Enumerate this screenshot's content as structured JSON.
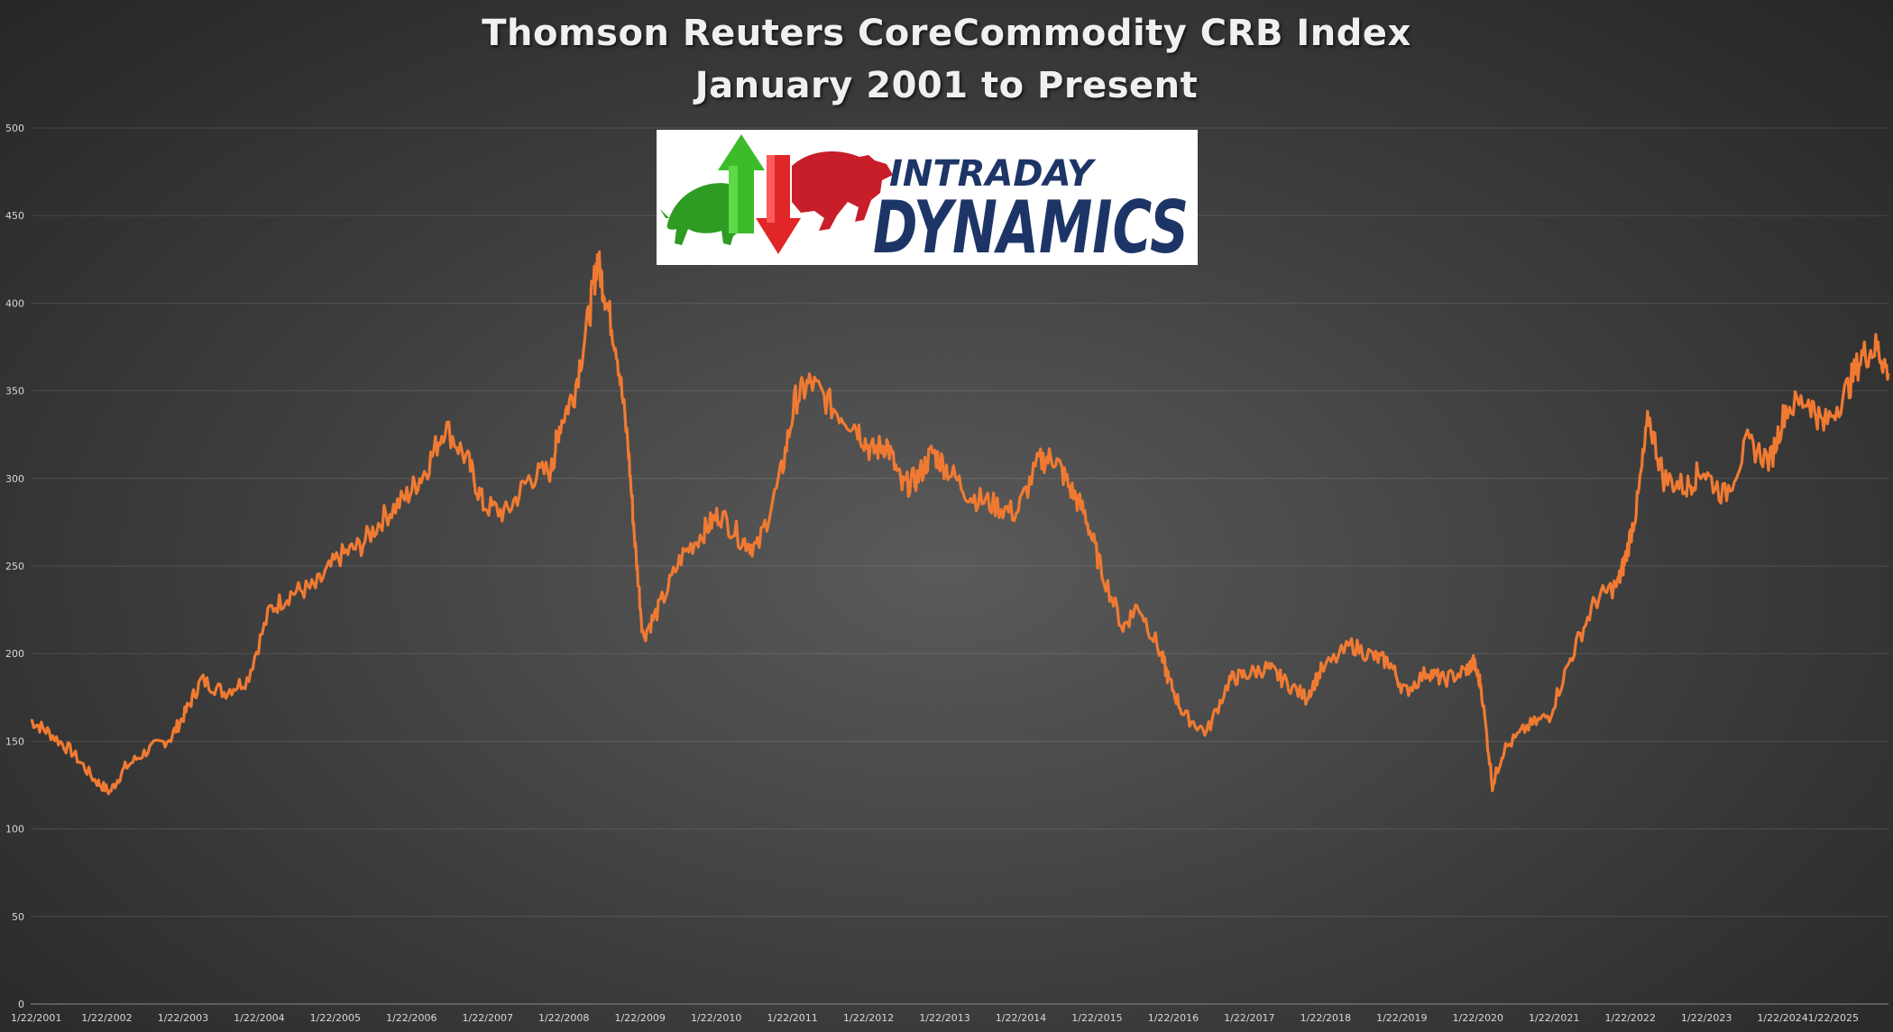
{
  "chart_data": {
    "type": "line",
    "title": "Thomson Reuters CoreCommodity CRB Index",
    "subtitle": "January 2001 to Present",
    "xlabel": "",
    "ylabel": "",
    "ylim": [
      0,
      500
    ],
    "y_ticks": [
      0,
      50,
      100,
      150,
      200,
      250,
      300,
      350,
      400,
      450,
      500
    ],
    "x_ticks": [
      "1/22/2001",
      "1/22/2002",
      "1/22/2003",
      "1/22/2004",
      "1/22/2005",
      "1/22/2006",
      "1/22/2007",
      "1/22/2008",
      "1/22/2009",
      "1/22/2010",
      "1/22/2011",
      "1/22/2012",
      "1/22/2013",
      "1/22/2014",
      "1/22/2015",
      "1/22/2016",
      "1/22/2017",
      "1/22/2018",
      "1/22/2019",
      "1/22/2020",
      "1/22/2021",
      "1/22/2022",
      "1/22/2023",
      "1/22/2024",
      "1/22/2025"
    ],
    "xlim": [
      2001.06,
      2025.45
    ],
    "grid": true,
    "legend": "none",
    "series": [
      {
        "color": "#f07a32",
        "x": [
          2001.06,
          2001.3,
          2001.6,
          2001.9,
          2002.1,
          2002.3,
          2002.6,
          2002.9,
          2003.1,
          2003.3,
          2003.6,
          2003.9,
          2004.2,
          2004.5,
          2004.8,
          2005.1,
          2005.4,
          2005.7,
          2006.0,
          2006.25,
          2006.5,
          2006.8,
          2007.0,
          2007.3,
          2007.6,
          2007.9,
          2008.0,
          2008.2,
          2008.4,
          2008.5,
          2008.6,
          2008.75,
          2008.9,
          2009.0,
          2009.1,
          2009.3,
          2009.6,
          2009.9,
          2010.1,
          2010.4,
          2010.6,
          2010.9,
          2011.1,
          2011.3,
          2011.6,
          2011.9,
          2012.1,
          2012.3,
          2012.5,
          2012.7,
          2012.9,
          2013.1,
          2013.4,
          2013.7,
          2014.0,
          2014.3,
          2014.5,
          2014.7,
          2014.9,
          2015.1,
          2015.4,
          2015.6,
          2015.9,
          2016.0,
          2016.2,
          2016.5,
          2016.8,
          2017.0,
          2017.3,
          2017.5,
          2017.8,
          2018.0,
          2018.4,
          2018.7,
          2018.9,
          2019.1,
          2019.4,
          2019.6,
          2019.9,
          2020.0,
          2020.1,
          2020.25,
          2020.4,
          2020.7,
          2021.0,
          2021.3,
          2021.6,
          2021.9,
          2022.0,
          2022.15,
          2022.3,
          2022.5,
          2022.8,
          2023.0,
          2023.3,
          2023.6,
          2023.9,
          2024.1,
          2024.4,
          2024.6,
          2024.9,
          2025.1,
          2025.3,
          2025.45
        ],
        "y": [
          162,
          155,
          144,
          128,
          121,
          135,
          145,
          152,
          167,
          185,
          178,
          185,
          225,
          235,
          238,
          255,
          262,
          278,
          290,
          305,
          330,
          310,
          285,
          280,
          300,
          305,
          330,
          350,
          395,
          425,
          405,
          375,
          320,
          260,
          210,
          225,
          255,
          270,
          280,
          265,
          260,
          300,
          345,
          355,
          340,
          330,
          315,
          320,
          295,
          300,
          315,
          305,
          290,
          285,
          280,
          310,
          312,
          295,
          280,
          250,
          215,
          228,
          200,
          185,
          165,
          155,
          185,
          188,
          192,
          185,
          175,
          190,
          205,
          198,
          195,
          178,
          190,
          185,
          190,
          195,
          182,
          125,
          145,
          158,
          165,
          200,
          230,
          240,
          255,
          285,
          335,
          300,
          295,
          305,
          290,
          320,
          310,
          340,
          345,
          330,
          350,
          370,
          375,
          360
        ]
      }
    ]
  },
  "logo": {
    "text_top": "INTRADAY",
    "text_bottom": "DYNAMICS",
    "icon_up": "up-arrow-icon",
    "icon_down": "down-arrow-icon",
    "icon_bull": "bull-icon",
    "icon_bear": "bear-icon"
  }
}
